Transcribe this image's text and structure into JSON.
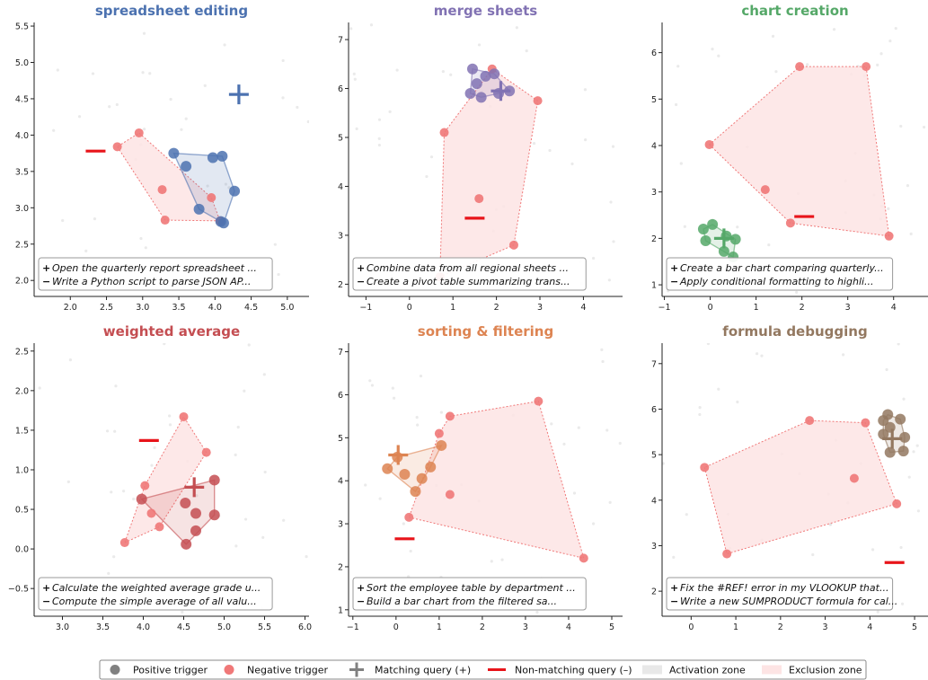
{
  "chart_data": [
    {
      "type": "scatter",
      "title": "spreadsheet editing",
      "color": "#4c72b0",
      "xlim": [
        1.5,
        5.3
      ],
      "ylim": [
        1.78,
        5.55
      ],
      "xticks": [
        "2.0",
        "2.5",
        "3.0",
        "3.5",
        "4.0",
        "4.5",
        "5.0"
      ],
      "yticks": [
        "2.0",
        "2.5",
        "3.0",
        "3.5",
        "4.0",
        "4.5",
        "5.0",
        "5.5"
      ],
      "positive_triggers": [
        [
          3.43,
          3.75
        ],
        [
          3.6,
          3.57
        ],
        [
          3.97,
          3.69
        ],
        [
          4.1,
          3.71
        ],
        [
          4.27,
          3.23
        ],
        [
          3.78,
          2.98
        ],
        [
          4.08,
          2.81
        ],
        [
          4.12,
          2.79
        ]
      ],
      "negative_triggers": [
        [
          2.95,
          4.03
        ],
        [
          2.65,
          3.84
        ],
        [
          3.27,
          3.25
        ],
        [
          3.31,
          2.83
        ],
        [
          3.95,
          3.14
        ],
        [
          4.07,
          2.82
        ]
      ],
      "matching_query": [
        4.33,
        4.56
      ],
      "nonmatching_query": [
        2.35,
        3.78
      ],
      "query_text_positive": "Open the quarterly report spreadsheet ...",
      "query_text_negative": "Write a Python script to parse JSON AP..."
    },
    {
      "type": "scatter",
      "title": "merge sheets",
      "color": "#8172b3",
      "xlim": [
        -1.4,
        4.9
      ],
      "ylim": [
        1.75,
        7.35
      ],
      "xticks": [
        "−1",
        "0",
        "1",
        "2",
        "3",
        "4"
      ],
      "yticks": [
        "2",
        "3",
        "4",
        "5",
        "6",
        "7"
      ],
      "positive_triggers": [
        [
          1.45,
          6.4
        ],
        [
          1.55,
          6.1
        ],
        [
          1.75,
          6.25
        ],
        [
          1.95,
          6.3
        ],
        [
          2.3,
          5.95
        ],
        [
          1.4,
          5.9
        ],
        [
          1.65,
          5.82
        ],
        [
          2.05,
          5.9
        ]
      ],
      "negative_triggers": [
        [
          1.9,
          6.4
        ],
        [
          2.95,
          5.75
        ],
        [
          0.8,
          5.1
        ],
        [
          1.6,
          3.75
        ],
        [
          2.4,
          2.8
        ],
        [
          0.7,
          2.15
        ]
      ],
      "matching_query": [
        2.1,
        5.95
      ],
      "nonmatching_query": [
        1.5,
        3.35
      ],
      "query_text_positive": "Combine data from all regional sheets ...",
      "query_text_negative": "Create a pivot table summarizing trans..."
    },
    {
      "type": "scatter",
      "title": "chart creation",
      "color": "#55a868",
      "xlim": [
        -1.05,
        4.75
      ],
      "ylim": [
        0.75,
        6.65
      ],
      "xticks": [
        "−1",
        "0",
        "1",
        "2",
        "3",
        "4"
      ],
      "yticks": [
        "1",
        "2",
        "3",
        "4",
        "5",
        "6"
      ],
      "positive_triggers": [
        [
          -0.15,
          2.2
        ],
        [
          0.05,
          2.3
        ],
        [
          -0.1,
          1.95
        ],
        [
          0.3,
          1.72
        ],
        [
          0.55,
          1.98
        ],
        [
          0.5,
          1.6
        ],
        [
          0.35,
          2.05
        ]
      ],
      "negative_triggers": [
        [
          -0.02,
          4.02
        ],
        [
          1.95,
          5.7
        ],
        [
          3.4,
          5.7
        ],
        [
          1.2,
          3.05
        ],
        [
          1.75,
          2.33
        ],
        [
          3.9,
          2.05
        ]
      ],
      "matching_query": [
        0.3,
        2.0
      ],
      "nonmatching_query": [
        2.05,
        2.47
      ],
      "query_text_positive": "Create a bar chart comparing quarterly...",
      "query_text_negative": "Apply conditional formatting to highli..."
    },
    {
      "type": "scatter",
      "title": "weighted average",
      "color": "#c44e52",
      "xlim": [
        2.65,
        6.05
      ],
      "ylim": [
        -0.85,
        2.6
      ],
      "xticks": [
        "3.0",
        "3.5",
        "4.0",
        "4.5",
        "5.0",
        "5.5",
        "6.0"
      ],
      "yticks": [
        "−0.5",
        "0.0",
        "0.5",
        "1.0",
        "1.5",
        "2.0",
        "2.5"
      ],
      "positive_triggers": [
        [
          3.98,
          0.63
        ],
        [
          4.52,
          0.58
        ],
        [
          4.88,
          0.87
        ],
        [
          4.65,
          0.45
        ],
        [
          4.88,
          0.43
        ],
        [
          4.65,
          0.23
        ],
        [
          4.53,
          0.06
        ]
      ],
      "negative_triggers": [
        [
          4.5,
          1.67
        ],
        [
          4.78,
          1.22
        ],
        [
          4.02,
          0.8
        ],
        [
          4.1,
          0.45
        ],
        [
          4.2,
          0.28
        ],
        [
          3.77,
          0.08
        ]
      ],
      "matching_query": [
        4.63,
        0.78
      ],
      "nonmatching_query": [
        4.07,
        1.37
      ],
      "query_text_positive": "Calculate the weighted average grade u...",
      "query_text_negative": "Compute the simple average of all valu..."
    },
    {
      "type": "scatter",
      "title": "sorting & filtering",
      "color": "#dd8452",
      "xlim": [
        -1.1,
        5.25
      ],
      "ylim": [
        0.85,
        7.2
      ],
      "xticks": [
        "−1",
        "0",
        "1",
        "2",
        "3",
        "4",
        "5"
      ],
      "yticks": [
        "1",
        "2",
        "3",
        "4",
        "5",
        "6",
        "7"
      ],
      "positive_triggers": [
        [
          -0.2,
          4.28
        ],
        [
          0.03,
          4.55
        ],
        [
          0.2,
          4.15
        ],
        [
          0.6,
          4.05
        ],
        [
          0.45,
          3.75
        ],
        [
          0.8,
          4.32
        ],
        [
          1.05,
          4.82
        ]
      ],
      "negative_triggers": [
        [
          1.25,
          5.5
        ],
        [
          1.0,
          5.1
        ],
        [
          3.3,
          5.85
        ],
        [
          1.25,
          3.68
        ],
        [
          0.3,
          3.15
        ],
        [
          4.35,
          2.2
        ]
      ],
      "matching_query": [
        0.05,
        4.6
      ],
      "nonmatching_query": [
        0.2,
        2.65
      ],
      "query_text_positive": "Sort the employee table by department ...",
      "query_text_negative": "Build a bar chart from the filtered sa..."
    },
    {
      "type": "scatter",
      "title": "formula debugging",
      "color": "#937860",
      "xlim": [
        -0.65,
        5.3
      ],
      "ylim": [
        1.45,
        7.45
      ],
      "xticks": [
        "0",
        "1",
        "2",
        "3",
        "4",
        "5"
      ],
      "yticks": [
        "2",
        "3",
        "4",
        "5",
        "6",
        "7"
      ],
      "positive_triggers": [
        [
          4.3,
          5.75
        ],
        [
          4.4,
          5.88
        ],
        [
          4.68,
          5.78
        ],
        [
          4.3,
          5.45
        ],
        [
          4.45,
          5.6
        ],
        [
          4.45,
          5.05
        ],
        [
          4.75,
          5.08
        ],
        [
          4.78,
          5.38
        ]
      ],
      "negative_triggers": [
        [
          2.65,
          5.75
        ],
        [
          3.9,
          5.7
        ],
        [
          0.3,
          4.72
        ],
        [
          3.65,
          4.48
        ],
        [
          4.6,
          3.92
        ],
        [
          0.8,
          2.82
        ]
      ],
      "matching_query": [
        4.5,
        5.35
      ],
      "nonmatching_query": [
        4.55,
        2.63
      ],
      "query_text_positive": "Fix the #REF! error in my VLOOKUP that...",
      "query_text_negative": "Write a new SUMPRODUCT formula for cal..."
    }
  ],
  "legend": {
    "items": [
      {
        "key": "positive",
        "label": "Positive trigger"
      },
      {
        "key": "negative",
        "label": "Negative trigger"
      },
      {
        "key": "match",
        "label": "Matching query (+)"
      },
      {
        "key": "nonmatch",
        "label": "Non-matching query (–)"
      },
      {
        "key": "activation",
        "label": "Activation zone"
      },
      {
        "key": "exclusion",
        "label": "Exclusion zone"
      }
    ]
  },
  "colors": {
    "negative": "#f07878",
    "nonmatch": "#e8141a",
    "exclusion_fill": "#fde4e4",
    "activation_fill": "#e8e8e8",
    "positive_legend": "#808080",
    "background_points": "#dcdcdc"
  }
}
